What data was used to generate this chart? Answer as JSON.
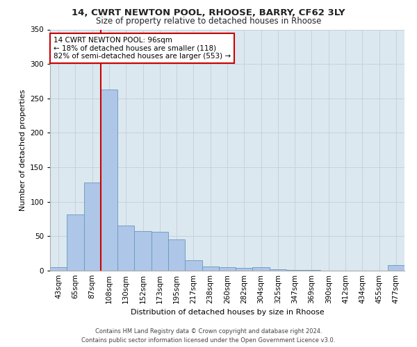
{
  "title1": "14, CWRT NEWTON POOL, RHOOSE, BARRY, CF62 3LY",
  "title2": "Size of property relative to detached houses in Rhoose",
  "xlabel": "Distribution of detached houses by size in Rhoose",
  "ylabel": "Number of detached properties",
  "footnote": "Contains HM Land Registry data © Crown copyright and database right 2024.\nContains public sector information licensed under the Open Government Licence v3.0.",
  "categories": [
    "43sqm",
    "65sqm",
    "87sqm",
    "108sqm",
    "130sqm",
    "152sqm",
    "173sqm",
    "195sqm",
    "217sqm",
    "238sqm",
    "260sqm",
    "282sqm",
    "304sqm",
    "325sqm",
    "347sqm",
    "369sqm",
    "390sqm",
    "412sqm",
    "434sqm",
    "455sqm",
    "477sqm"
  ],
  "bar_values": [
    5,
    82,
    128,
    263,
    65,
    57,
    56,
    45,
    15,
    6,
    5,
    4,
    5,
    2,
    1,
    1,
    0,
    0,
    0,
    0,
    8
  ],
  "bar_color": "#aec6e8",
  "bar_edge_color": "#6699bb",
  "grid_color": "#c8d0dc",
  "background_color": "#dce8f0",
  "vline_color": "#cc0000",
  "annotation_text": "14 CWRT NEWTON POOL: 96sqm\n← 18% of detached houses are smaller (118)\n82% of semi-detached houses are larger (553) →",
  "annotation_box_facecolor": "#ffffff",
  "annotation_box_edgecolor": "#cc0000",
  "ylim": [
    0,
    350
  ],
  "yticks": [
    0,
    50,
    100,
    150,
    200,
    250,
    300,
    350
  ],
  "title1_fontsize": 9.5,
  "title2_fontsize": 8.5,
  "xlabel_fontsize": 8.0,
  "ylabel_fontsize": 8.0,
  "tick_fontsize": 7.5,
  "annotation_fontsize": 7.5,
  "footnote_fontsize": 6.0
}
